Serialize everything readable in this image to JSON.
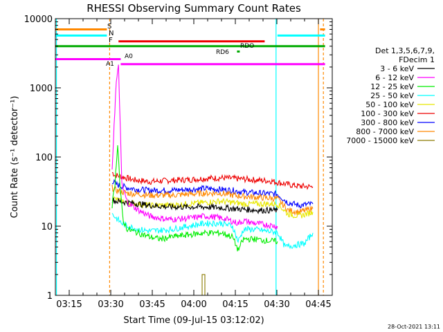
{
  "chart_data": {
    "type": "line",
    "title": "RHESSI Observing Summary Count Rates",
    "xlabel": "Start Time (09-Jul-15 03:12:02)",
    "ylabel": "Count Rate (s⁻¹ detector⁻¹)",
    "x_unit": "minutes after 03:12:02",
    "xlim": [
      -2,
      98
    ],
    "ylim": [
      1,
      10000
    ],
    "yscale": "log",
    "grid": false,
    "x_ticks": [
      {
        "t": 3,
        "label": "03:15"
      },
      {
        "t": 18,
        "label": "03:30"
      },
      {
        "t": 33,
        "label": "03:45"
      },
      {
        "t": 48,
        "label": "04:00"
      },
      {
        "t": 63,
        "label": "04:15"
      },
      {
        "t": 78,
        "label": "04:30"
      },
      {
        "t": 93,
        "label": "04:45"
      }
    ],
    "y_ticks": [
      {
        "v": 1,
        "label": "1"
      },
      {
        "v": 10,
        "label": "10"
      },
      {
        "v": 100,
        "label": "100"
      },
      {
        "v": 1000,
        "label": "1000"
      },
      {
        "v": 10000,
        "label": "10000"
      }
    ],
    "legend": {
      "placement": "right",
      "header": [
        "Det 1,3,5,6,7,9,",
        "FDecim 1"
      ],
      "entries": [
        {
          "label": "3 - 6 keV",
          "color": "#000000"
        },
        {
          "label": "6 - 12 keV",
          "color": "#ff00ff"
        },
        {
          "label": "12 - 25 keV",
          "color": "#00ee00"
        },
        {
          "label": "25 - 50 keV",
          "color": "#00ffff"
        },
        {
          "label": "50 - 100 keV",
          "color": "#e8e800"
        },
        {
          "label": "100 - 300 keV",
          "color": "#ee0000"
        },
        {
          "label": "300 - 800 keV",
          "color": "#0000ff"
        },
        {
          "label": "800 - 7000 keV",
          "color": "#ff8800"
        },
        {
          "label": "7000 - 15000 keV",
          "color": "#8a7a00"
        }
      ]
    },
    "series": [
      {
        "name": "100 - 300 keV",
        "color": "#ee0000",
        "x": [
          18.5,
          19.5,
          22,
          26,
          32,
          40,
          46,
          52,
          58,
          62,
          66,
          72,
          76,
          78.2,
          82,
          86,
          91
        ],
        "y": [
          60,
          55,
          52,
          47,
          44,
          46,
          47,
          49,
          50,
          49,
          48,
          46,
          45,
          43,
          40,
          38,
          37
        ]
      },
      {
        "name": "300 - 800 keV",
        "color": "#0000ff",
        "x": [
          18.5,
          20,
          24,
          28,
          32,
          40,
          46,
          52,
          58,
          62,
          66,
          72,
          78.2,
          82,
          86,
          91
        ],
        "y": [
          45,
          40,
          36,
          34,
          33,
          33,
          34,
          35,
          34,
          33,
          31,
          30,
          29,
          22,
          20,
          21
        ]
      },
      {
        "name": "800 - 7000 keV",
        "color": "#ff8800",
        "x": [
          18.5,
          20,
          24,
          28,
          32,
          40,
          46,
          52,
          58,
          62,
          66,
          72,
          78.2,
          82,
          86,
          91
        ],
        "y": [
          36,
          33,
          30,
          29,
          28,
          28,
          29,
          30,
          30,
          28,
          27,
          26,
          25,
          17,
          16,
          18
        ]
      },
      {
        "name": "50 - 100 keV",
        "color": "#e8e800",
        "x": [
          18.5,
          20,
          24,
          28,
          32,
          40,
          46,
          52,
          58,
          62,
          66,
          72,
          78.2,
          82,
          86,
          91
        ],
        "y": [
          26,
          24,
          22,
          21,
          20,
          20,
          21,
          22,
          23,
          22,
          21,
          21,
          21,
          15,
          14,
          16
        ]
      },
      {
        "name": "3 - 6 keV",
        "color": "#000000",
        "x": [
          18.5,
          20,
          24,
          28,
          32,
          40,
          46,
          52,
          58,
          62,
          66,
          72,
          78.2
        ],
        "y": [
          24,
          23,
          22,
          21,
          20,
          19,
          19,
          19,
          18.5,
          18,
          17.5,
          17,
          17
        ]
      },
      {
        "name": "6 - 12 keV",
        "color": "#ff00ff",
        "x": [
          18.5,
          19.2,
          20,
          20.8,
          21.2,
          22,
          24,
          28,
          32,
          36,
          40,
          46,
          52,
          56,
          60,
          64,
          66,
          70,
          74,
          78.2
        ],
        "y": [
          60,
          300,
          1200,
          2000,
          600,
          40,
          22,
          17,
          14,
          13,
          12.5,
          13,
          14,
          13.5,
          12.5,
          11,
          12,
          11,
          10.5,
          10
        ]
      },
      {
        "name": "25 - 50 keV",
        "color": "#00ffff",
        "x": [
          18.5,
          20,
          22,
          24,
          28,
          32,
          40,
          46,
          52,
          58,
          62,
          64,
          66,
          70,
          74,
          78.2,
          81,
          84,
          88,
          91
        ],
        "y": [
          15,
          13,
          11,
          10,
          9,
          8.5,
          9,
          10,
          11,
          11,
          10,
          6,
          9,
          9,
          8.5,
          8.2,
          5,
          5.3,
          5.6,
          8
        ]
      },
      {
        "name": "12 - 25 keV",
        "color": "#00ee00",
        "x": [
          18.5,
          19.5,
          20.5,
          21.5,
          22.5,
          24,
          28,
          32,
          36,
          40,
          46,
          52,
          58,
          62,
          64,
          66,
          70,
          74,
          78.2
        ],
        "y": [
          20,
          40,
          160,
          30,
          12,
          9,
          8,
          7,
          6.5,
          7,
          7.5,
          8,
          8,
          7,
          4.5,
          6.5,
          6.5,
          6.2,
          6
        ]
      },
      {
        "name": "7000 - 15000 keV",
        "color": "#8a7a00",
        "x": [
          51,
          51,
          52,
          52
        ],
        "y": [
          1,
          2,
          2,
          1
        ]
      }
    ],
    "flag_bars": [
      {
        "label": "S",
        "color": "#ff8800",
        "segments": [
          [
            -2,
            16.6
          ],
          [
            93.6,
            95.4
          ]
        ],
        "y": 7000
      },
      {
        "label": "N",
        "color": "#00ffff",
        "segments": [
          [
            -2,
            16.6
          ],
          [
            78.2,
            95.4
          ]
        ],
        "y": 5700
      },
      {
        "label": "F",
        "color": "#ee0000",
        "segments": [
          [
            20.8,
            73.6
          ]
        ],
        "y": 4700
      },
      {
        "label": "RDO",
        "color": "#00aa00",
        "segments": [
          [
            -2,
            95.4
          ]
        ],
        "y": 4000
      },
      {
        "label": "RD6",
        "color": "#00aa00",
        "segments": [
          [
            63.6,
            64.6
          ]
        ],
        "y": 3350
      },
      {
        "label": "A0",
        "color": "#ff00ff",
        "segments": [
          [
            -2,
            21.6
          ]
        ],
        "y": 2600
      },
      {
        "label": "A1",
        "color": "#ff00ff",
        "segments": [
          [
            21.6,
            95.4
          ]
        ],
        "y": 2200
      }
    ],
    "vlines": [
      {
        "t": 17.6,
        "color": "#ff8800",
        "dashed": true
      },
      {
        "t": 77.7,
        "color": "#00ffff",
        "dashed": false
      },
      {
        "t": 93.0,
        "color": "#ff8800",
        "dashed": false
      },
      {
        "t": 94.8,
        "color": "#ff8800",
        "dashed": true
      },
      {
        "t": -1.6,
        "color": "#00ffff",
        "dashed": false
      }
    ],
    "stamp": "28-Oct-2021 13:11"
  }
}
